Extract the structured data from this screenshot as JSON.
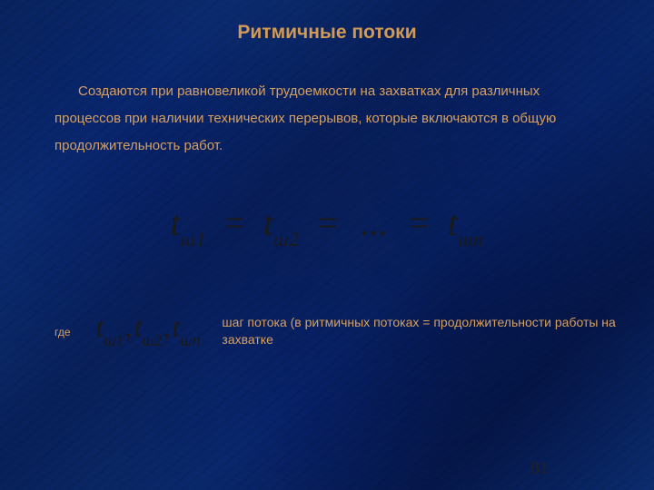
{
  "colors": {
    "text": "#d6a060",
    "title": "#d49a52",
    "formula": "#1a1a1a",
    "pagenum": "#222222"
  },
  "fontsizes": {
    "title_pt": 21,
    "body_pt": 15,
    "where_label_pt": 12,
    "formula_main_pt": 40,
    "formula_list_pt": 32,
    "desc_pt": 14,
    "pagenum_pt": 20
  },
  "title": "Ритмичные потоки",
  "intro": "Создаются при равновеликой трудоемкости на захватках для различных процессов при наличии технических перерывов, которые включаются в общую продолжительность работ.",
  "formula": {
    "t1_var": "t",
    "t1_sub": "ш1",
    "eq1": "=",
    "t2_var": "t",
    "t2_sub": "ш2",
    "eq2": "=",
    "dots": "...",
    "eq3": "=",
    "tn_var": "t",
    "tn_sub": "шn"
  },
  "where": {
    "label": "где",
    "list": {
      "a_var": "t",
      "a_sub": "ш1",
      "b_var": "t",
      "b_sub": "ш2",
      "c_var": "t",
      "c_sub": "шn",
      "comma": ","
    },
    "desc": "шаг потока (в ритмичных потоках = продолжительности работы на захватке"
  },
  "pagenum": "81"
}
